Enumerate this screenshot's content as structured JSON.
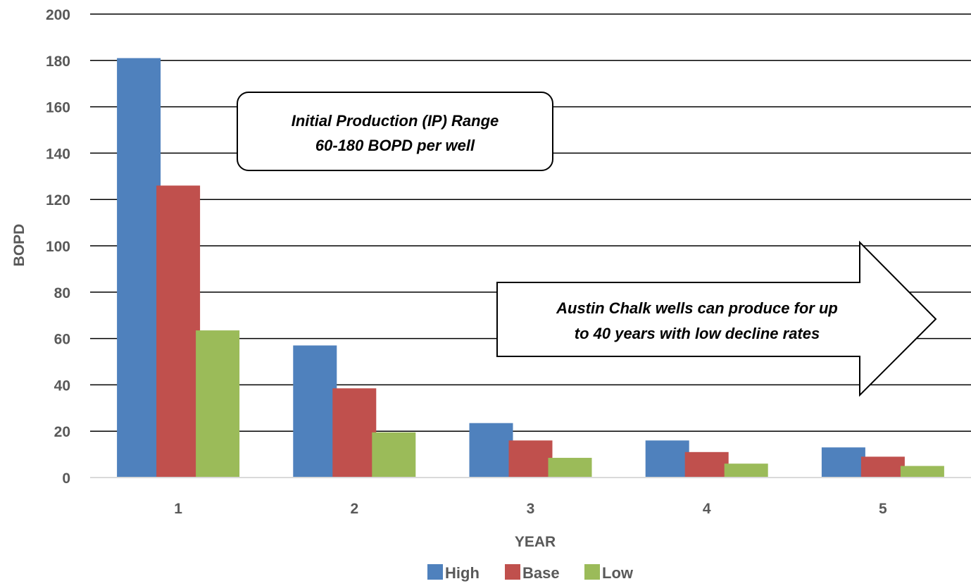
{
  "chart_data": {
    "type": "bar",
    "categories": [
      "1",
      "2",
      "3",
      "4",
      "5"
    ],
    "series": [
      {
        "name": "High",
        "values": [
          181,
          57,
          23.5,
          16,
          13
        ],
        "color": "#4f81bd"
      },
      {
        "name": "Base",
        "values": [
          126,
          38.5,
          16,
          11,
          9
        ],
        "color": "#c0504d"
      },
      {
        "name": "Low",
        "values": [
          63.5,
          19.5,
          8.5,
          6,
          5
        ],
        "color": "#9bbb59"
      }
    ],
    "xlabel": "YEAR",
    "ylabel": "BOPD",
    "ylim": [
      0,
      200
    ],
    "yticks": [
      "0",
      "20",
      "40",
      "60",
      "80",
      "100",
      "120",
      "140",
      "160",
      "180",
      "200"
    ],
    "grid": true,
    "legend_position": "bottom"
  },
  "annotations": {
    "ip_callout": [
      "Initial Production (IP) Range",
      "60-180 BOPD per well"
    ],
    "arrow_callout": [
      "Austin Chalk wells can produce for up",
      "to 40 years with low decline rates"
    ]
  }
}
